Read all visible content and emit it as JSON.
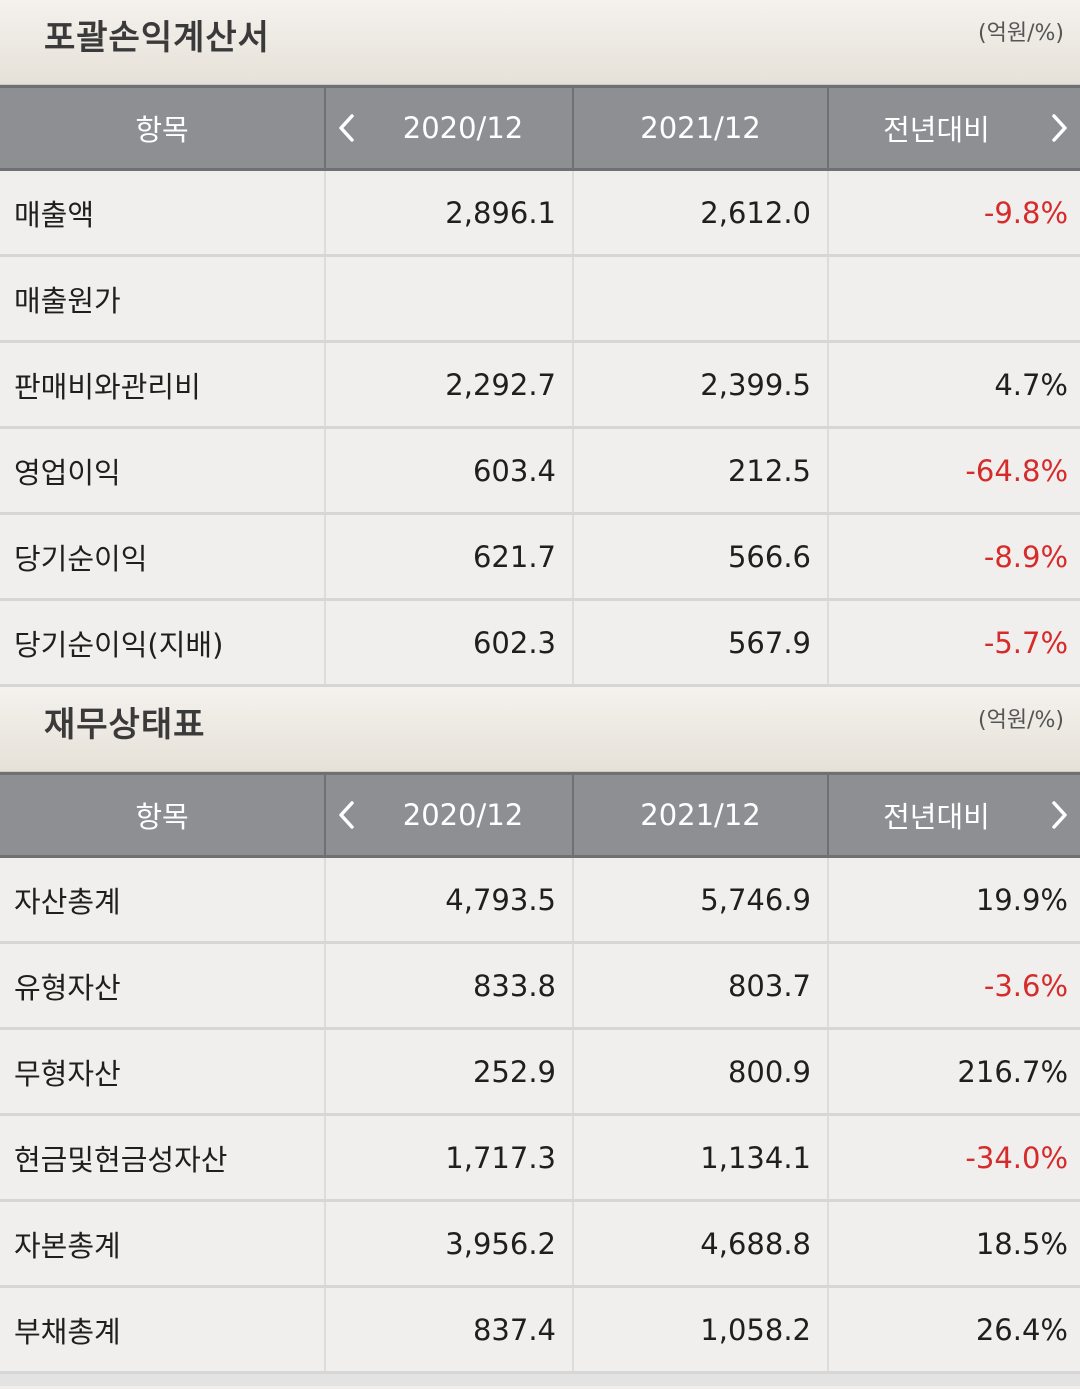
{
  "sections": [
    {
      "title": "포괄손익계산서",
      "unit": "(억원/%)",
      "columns": [
        "항목",
        "2020/12",
        "2021/12",
        "전년대비"
      ],
      "rows": [
        {
          "label": "매출액",
          "v2020": "2,896.1",
          "v2021": "2,612.0",
          "yoy": "-9.8%"
        },
        {
          "label": "매출원가",
          "v2020": "",
          "v2021": "",
          "yoy": ""
        },
        {
          "label": "판매비와관리비",
          "v2020": "2,292.7",
          "v2021": "2,399.5",
          "yoy": "4.7%"
        },
        {
          "label": "영업이익",
          "v2020": "603.4",
          "v2021": "212.5",
          "yoy": "-64.8%"
        },
        {
          "label": "당기순이익",
          "v2020": "621.7",
          "v2021": "566.6",
          "yoy": "-8.9%"
        },
        {
          "label": "당기순이익(지배)",
          "v2020": "602.3",
          "v2021": "567.9",
          "yoy": "-5.7%"
        }
      ]
    },
    {
      "title": "재무상태표",
      "unit": "(억원/%)",
      "columns": [
        "항목",
        "2020/12",
        "2021/12",
        "전년대비"
      ],
      "rows": [
        {
          "label": "자산총계",
          "v2020": "4,793.5",
          "v2021": "5,746.9",
          "yoy": "19.9%"
        },
        {
          "label": "유형자산",
          "v2020": "833.8",
          "v2021": "803.7",
          "yoy": "-3.6%"
        },
        {
          "label": "무형자산",
          "v2020": "252.9",
          "v2021": "800.9",
          "yoy": "216.7%"
        },
        {
          "label": "현금및현금성자산",
          "v2020": "1,717.3",
          "v2021": "1,134.1",
          "yoy": "-34.0%"
        },
        {
          "label": "자본총계",
          "v2020": "3,956.2",
          "v2021": "4,688.8",
          "yoy": "18.5%"
        },
        {
          "label": "부채총계",
          "v2020": "837.4",
          "v2021": "1,058.2",
          "yoy": "26.4%"
        }
      ]
    }
  ],
  "colors": {
    "negative": "#d62b2b",
    "header_bg": "#8e8f92"
  },
  "icons": {
    "prev": "chevron-left-icon",
    "next": "chevron-right-icon"
  }
}
